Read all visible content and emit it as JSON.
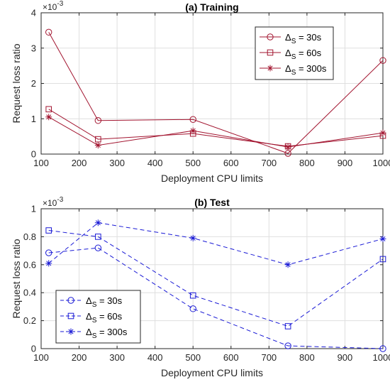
{
  "chart_data": [
    {
      "type": "line",
      "title": "(a) Training",
      "xlabel": "Deployment CPU limits",
      "ylabel": "Request loss ratio",
      "y_exponent_label": "×10",
      "y_exponent_power": "-3",
      "xlim": [
        100,
        1000
      ],
      "ylim": [
        0,
        4
      ],
      "xticks": [
        "100",
        "200",
        "300",
        "400",
        "500",
        "600",
        "700",
        "800",
        "900",
        "1000"
      ],
      "yticks": [
        "0",
        "1",
        "2",
        "3",
        "4"
      ],
      "grid": true,
      "legend_position": "top-right",
      "line_style": "solid",
      "color": "#a2142f",
      "x": [
        120,
        250,
        500,
        750,
        1000
      ],
      "series": [
        {
          "name": "Δ",
          "name_sub": "S",
          "name_suffix": " = 30s",
          "marker": "circle",
          "values": [
            3.45,
            0.95,
            0.98,
            0.02,
            2.65
          ]
        },
        {
          "name": "Δ",
          "name_sub": "S",
          "name_suffix": " = 60s",
          "marker": "square",
          "values": [
            1.27,
            0.42,
            0.58,
            0.22,
            0.52
          ]
        },
        {
          "name": "Δ",
          "name_sub": "S",
          "name_suffix": " = 300s",
          "marker": "star",
          "values": [
            1.05,
            0.25,
            0.66,
            0.2,
            0.6
          ]
        }
      ]
    },
    {
      "type": "line",
      "title": "(b) Test",
      "xlabel": "Deployment CPU limits",
      "ylabel": "Request loss ratio",
      "y_exponent_label": "×10",
      "y_exponent_power": "-3",
      "xlim": [
        100,
        1000
      ],
      "ylim": [
        0,
        1
      ],
      "xticks": [
        "100",
        "200",
        "300",
        "400",
        "500",
        "600",
        "700",
        "800",
        "900",
        "1000"
      ],
      "yticks": [
        "0",
        "0.2",
        "0.4",
        "0.6",
        "0.8",
        "1"
      ],
      "grid": true,
      "legend_position": "bottom-left",
      "line_style": "dashed",
      "color": "#1a1ad6",
      "x": [
        120,
        250,
        500,
        750,
        1000
      ],
      "series": [
        {
          "name": "Δ",
          "name_sub": "S",
          "name_suffix": " = 30s",
          "marker": "circle",
          "values": [
            0.685,
            0.72,
            0.285,
            0.02,
            0.0
          ]
        },
        {
          "name": "Δ",
          "name_sub": "S",
          "name_suffix": " = 60s",
          "marker": "square",
          "values": [
            0.845,
            0.8,
            0.38,
            0.16,
            0.64
          ]
        },
        {
          "name": "Δ",
          "name_sub": "S",
          "name_suffix": " = 300s",
          "marker": "star",
          "values": [
            0.61,
            0.9,
            0.79,
            0.6,
            0.785
          ]
        }
      ]
    }
  ]
}
